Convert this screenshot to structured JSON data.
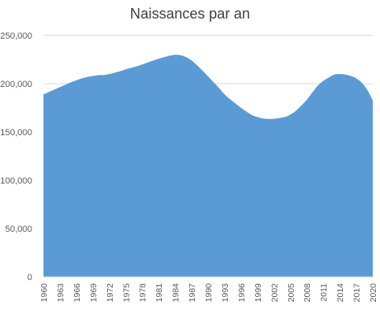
{
  "chart_data": {
    "type": "area",
    "title": "Naissances par an",
    "xlabel": "",
    "ylabel": "",
    "ylim": [
      0,
      250000
    ],
    "yticks": [
      0,
      50000,
      100000,
      150000,
      200000,
      250000
    ],
    "ytick_labels": [
      "0",
      "50,000",
      "100,000",
      "150,000",
      "200,000",
      "250,000"
    ],
    "xtick_labels": [
      "1960",
      "1963",
      "1966",
      "1969",
      "1972",
      "1975",
      "1978",
      "1981",
      "1984",
      "1987",
      "1990",
      "1993",
      "1996",
      "1999",
      "2002",
      "2005",
      "2008",
      "2011",
      "2014",
      "2017",
      "2020"
    ],
    "grid": true,
    "legend": "none",
    "fill_color": "#5b9bd5",
    "x": [
      1960,
      1961,
      1962,
      1963,
      1964,
      1965,
      1966,
      1967,
      1968,
      1969,
      1970,
      1971,
      1972,
      1973,
      1974,
      1975,
      1976,
      1977,
      1978,
      1979,
      1980,
      1981,
      1982,
      1983,
      1984,
      1985,
      1986,
      1987,
      1988,
      1989,
      1990,
      1991,
      1992,
      1993,
      1994,
      1995,
      1996,
      1997,
      1998,
      1999,
      2000,
      2001,
      2002,
      2003,
      2004,
      2005,
      2006,
      2007,
      2008,
      2009,
      2010,
      2011,
      2012,
      2013,
      2014,
      2015,
      2016,
      2017,
      2018,
      2019,
      2020
    ],
    "values": [
      189000,
      191500,
      194000,
      196500,
      199000,
      201500,
      203500,
      205500,
      207000,
      208000,
      208800,
      209000,
      210000,
      211500,
      213000,
      215000,
      216500,
      218000,
      220000,
      222000,
      224000,
      225800,
      227500,
      229000,
      230000,
      229500,
      227500,
      224000,
      219000,
      213500,
      207500,
      201500,
      195500,
      189000,
      184000,
      179500,
      175000,
      171000,
      167500,
      165500,
      164000,
      163500,
      163800,
      164500,
      165500,
      168000,
      172000,
      177500,
      183500,
      191000,
      198000,
      203000,
      206500,
      209500,
      210000,
      209500,
      208000,
      205500,
      201000,
      193500,
      183000
    ]
  }
}
